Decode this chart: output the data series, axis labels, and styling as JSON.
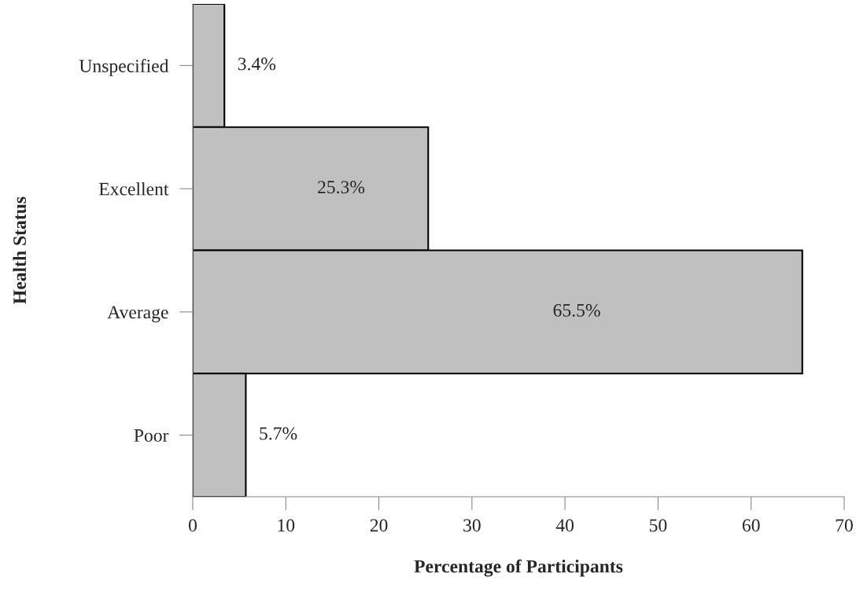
{
  "chart_data": {
    "type": "bar",
    "orientation": "horizontal",
    "xlabel": "Percentage of Participants",
    "ylabel": "Health Status",
    "categories": [
      "Unspecified",
      "Excellent",
      "Average",
      "Poor"
    ],
    "values": [
      3.4,
      25.3,
      65.5,
      5.7
    ],
    "value_labels": [
      "3.4%",
      "25.3%",
      "65.5%",
      "5.7%"
    ],
    "color": "#c0c0c0",
    "xlim": [
      0,
      70
    ],
    "xticks": [
      0,
      10,
      20,
      30,
      40,
      50,
      60,
      70
    ],
    "grid": false,
    "legend": false
  }
}
